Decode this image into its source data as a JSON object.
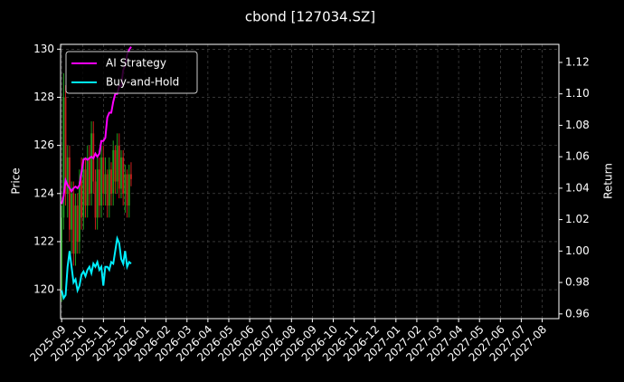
{
  "chart_data": {
    "type": "candlestick",
    "title": "cbond [127034.SZ]",
    "ylabel": "Price",
    "y2label": "Return",
    "x": [
      0,
      0.095,
      0.19,
      0.285,
      0.38,
      0.475,
      0.57,
      0.665,
      0.76,
      0.855,
      0.95,
      1.045,
      1.14,
      1.235,
      1.33,
      1.425,
      1.52,
      1.615,
      1.71,
      1.805,
      1.9,
      1.995,
      2.09,
      2.185,
      2.28,
      2.375,
      2.47,
      2.565,
      2.66,
      2.755,
      2.85,
      2.945,
      3.04,
      3.135,
      3.23,
      3.325
    ],
    "open": [
      120,
      123,
      128,
      124,
      125.5,
      122.5,
      124,
      121.5,
      123.5,
      122,
      124.5,
      123,
      125,
      123.5,
      125.5,
      124,
      126.5,
      124.5,
      123,
      125,
      123.5,
      125.5,
      124,
      124.8,
      123.5,
      125,
      124,
      125.8,
      124.5,
      126,
      124.2,
      125.5,
      124,
      124.8,
      123.5,
      124.8
    ],
    "high": [
      123.5,
      129,
      128.5,
      126,
      126,
      124.5,
      124.5,
      124,
      124,
      125,
      125.5,
      125.5,
      125.5,
      126,
      126,
      127,
      127,
      125,
      125.5,
      125.5,
      126,
      126,
      125.5,
      125,
      125.5,
      125.3,
      126.2,
      126,
      126.5,
      126.5,
      125.8,
      125.8,
      125.2,
      125,
      125.2,
      125.3
    ],
    "low": [
      119.5,
      122.5,
      123.5,
      123,
      122,
      121.5,
      121,
      121,
      121.5,
      121.5,
      122.5,
      122.5,
      123,
      123,
      123.5,
      123.5,
      124,
      122.5,
      122.5,
      123,
      123,
      123.5,
      123.5,
      123,
      123,
      123.5,
      123.5,
      124,
      124,
      123.8,
      123.8,
      123.5,
      123.2,
      123,
      123,
      124.3
    ],
    "close": [
      123,
      128,
      124,
      125.5,
      122.5,
      124,
      121.5,
      123.5,
      122,
      124.5,
      123,
      125,
      123.5,
      125.5,
      124,
      126.5,
      124.5,
      123,
      125,
      123.5,
      125.5,
      124,
      124.8,
      123.5,
      125,
      124,
      125.8,
      124.5,
      126,
      124.2,
      125.5,
      124,
      124.8,
      123.5,
      124.8,
      124.6
    ],
    "up_color": "#1f9e1f",
    "down_color": "#c81e1e",
    "series": [
      {
        "name": "AI Strategy",
        "color": "#ff00ff",
        "axis": "y2",
        "values": [
          1.03,
          1.035,
          1.045,
          1.042,
          1.04,
          1.038,
          1.04,
          1.041,
          1.04,
          1.042,
          1.05,
          1.058,
          1.059,
          1.058,
          1.059,
          1.06,
          1.059,
          1.062,
          1.06,
          1.062,
          1.07,
          1.07,
          1.072,
          1.085,
          1.088,
          1.088,
          1.095,
          1.1,
          1.1,
          1.105,
          1.105,
          1.115,
          1.118,
          1.125,
          1.128,
          1.13
        ]
      },
      {
        "name": "Buy-and-Hold",
        "color": "#00f0ff",
        "axis": "y2",
        "values": [
          0.975,
          0.97,
          0.972,
          0.99,
          1.0,
          0.99,
          0.98,
          0.982,
          0.975,
          0.978,
          0.985,
          0.987,
          0.984,
          0.988,
          0.99,
          0.986,
          0.992,
          0.99,
          0.993,
          0.988,
          0.99,
          0.978,
          0.99,
          0.99,
          0.988,
          0.993,
          0.992,
          1.0,
          1.008,
          1.005,
          0.995,
          0.992,
          1.0,
          0.99,
          0.993,
          0.992
        ]
      }
    ],
    "xlim": [
      -0.05,
      23.8
    ],
    "xticks": [
      {
        "value": 0,
        "label": "2025-09"
      },
      {
        "value": 1,
        "label": "2025-10"
      },
      {
        "value": 2,
        "label": "2025-11"
      },
      {
        "value": 3,
        "label": "2025-12"
      },
      {
        "value": 4,
        "label": "2026-01"
      },
      {
        "value": 5,
        "label": "2026-02"
      },
      {
        "value": 6,
        "label": "2026-03"
      },
      {
        "value": 7,
        "label": "2026-04"
      },
      {
        "value": 8,
        "label": "2026-05"
      },
      {
        "value": 9,
        "label": "2026-06"
      },
      {
        "value": 10,
        "label": "2026-07"
      },
      {
        "value": 11,
        "label": "2026-08"
      },
      {
        "value": 12,
        "label": "2026-09"
      },
      {
        "value": 13,
        "label": "2026-10"
      },
      {
        "value": 14,
        "label": "2026-11"
      },
      {
        "value": 15,
        "label": "2026-12"
      },
      {
        "value": 16,
        "label": "2027-01"
      },
      {
        "value": 17,
        "label": "2027-02"
      },
      {
        "value": 18,
        "label": "2027-03"
      },
      {
        "value": 19,
        "label": "2027-04"
      },
      {
        "value": 20,
        "label": "2027-05"
      },
      {
        "value": 21,
        "label": "2027-06"
      },
      {
        "value": 22,
        "label": "2027-07"
      },
      {
        "value": 23,
        "label": "2027-08"
      }
    ],
    "ylim": [
      118.8,
      130.2
    ],
    "yticks": [
      120,
      122,
      124,
      126,
      128,
      130
    ],
    "y2lim": [
      0.957,
      1.1315
    ],
    "y2ticks": [
      0.96,
      0.98,
      {
        "value": 1.0,
        "label": "1.00"
      },
      1.02,
      1.04,
      1.06,
      1.08,
      {
        "value": 1.1,
        "label": "1.10"
      },
      1.12
    ],
    "grid": true,
    "legend": "upper left"
  }
}
